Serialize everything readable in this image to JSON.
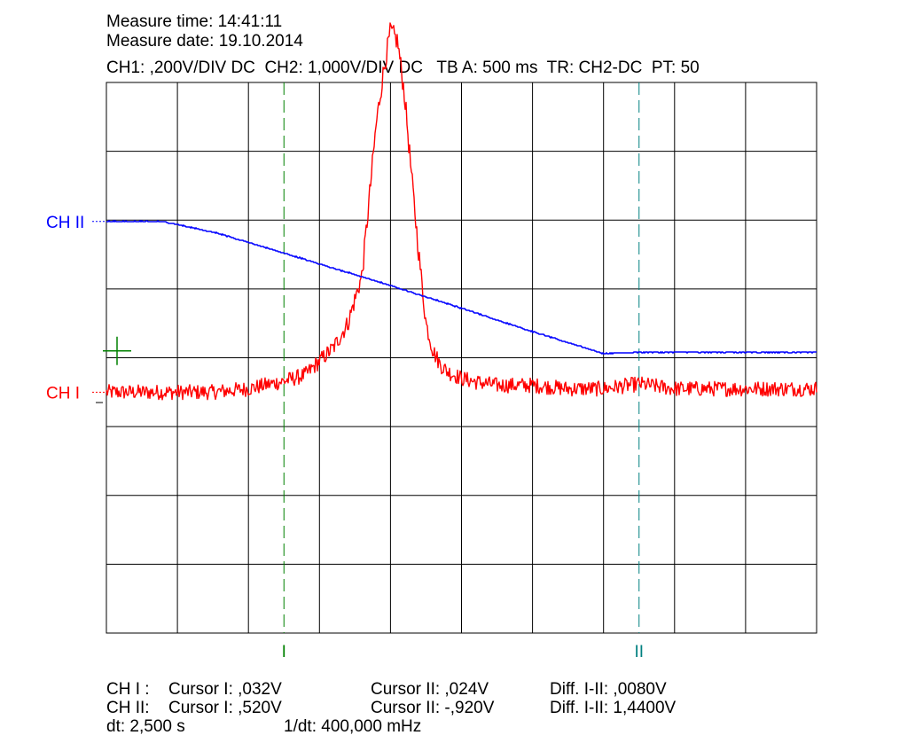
{
  "header": {
    "measure_time": "Measure time: 14:41:11",
    "measure_date": "Measure date: 19.10.2014",
    "settings": "CH1: ,200V/DIV DC  CH2: 1,000V/DIV DC   TB A: 500 ms  TR: CH2-DC  PT: 50"
  },
  "labels": {
    "ch2_marker": "CH II",
    "ch1_marker": "CH I",
    "cursor1": "I",
    "cursor2": "II"
  },
  "colors": {
    "ch1": "#ff0000",
    "ch2": "#0000ff",
    "cursor1": "#008000",
    "cursor2": "#008080",
    "grid": "#000000",
    "trigger_mark": "#008000"
  },
  "readout": {
    "ch1_label": "CH I :",
    "ch1_cursor1": "Cursor I: ,032V",
    "ch1_cursor2": "Cursor II: ,024V",
    "ch1_diff": "Diff. I-II: ,0080V",
    "ch2_label": "CH II:",
    "ch2_cursor1": "Cursor I: ,520V",
    "ch2_cursor2": "Cursor II: -,920V",
    "ch2_diff": "Diff. I-II: 1,4400V",
    "dt": "dt: 2,500 s",
    "inv_dt": "1/dt: 400,000 mHz"
  },
  "chart_data": {
    "type": "line",
    "title": "",
    "xlabel": "",
    "ylabel": "",
    "grid": true,
    "x_divisions": 10,
    "y_divisions": 8,
    "x_unit": "s",
    "time_per_div": 0.5,
    "xlim": [
      0,
      5
    ],
    "cursors": [
      {
        "label": "I",
        "x": 1.25
      },
      {
        "label": "II",
        "x": 3.75
      }
    ],
    "series": [
      {
        "name": "CH I",
        "color": "#ff0000",
        "volts_per_div": 0.2,
        "y_unit": "V",
        "zero_div": -0.5,
        "x": [
          0,
          0.25,
          0.5,
          0.75,
          1.0,
          1.25,
          1.4,
          1.5,
          1.6,
          1.7,
          1.8,
          1.85,
          1.9,
          1.95,
          2.0,
          2.05,
          2.1,
          2.15,
          2.2,
          2.25,
          2.3,
          2.35,
          2.4,
          2.5,
          2.6,
          2.75,
          3.0,
          3.25,
          3.5,
          3.75,
          4.0,
          4.25,
          4.5,
          4.75,
          5.0
        ],
        "y": [
          0,
          0,
          0,
          0,
          0.01,
          0.032,
          0.05,
          0.09,
          0.13,
          0.2,
          0.34,
          0.56,
          0.78,
          0.93,
          1.05,
          1.02,
          0.86,
          0.62,
          0.4,
          0.2,
          0.12,
          0.08,
          0.06,
          0.04,
          0.03,
          0.02,
          0.02,
          0.01,
          0.01,
          0.024,
          0.01,
          0.01,
          0.01,
          0.01,
          0.01
        ]
      },
      {
        "name": "CH II",
        "color": "#0000ff",
        "volts_per_div": 1.0,
        "y_unit": "V",
        "zero_div": 1.0,
        "x": [
          0,
          0.4,
          0.8,
          1.25,
          2.0,
          2.5,
          3.0,
          3.5,
          3.75,
          4.0,
          4.5,
          5.0
        ],
        "y": [
          0.98,
          0.98,
          0.8,
          0.52,
          0.05,
          -0.28,
          -0.62,
          -0.94,
          -0.92,
          -0.92,
          -0.92,
          -0.92
        ]
      }
    ]
  }
}
